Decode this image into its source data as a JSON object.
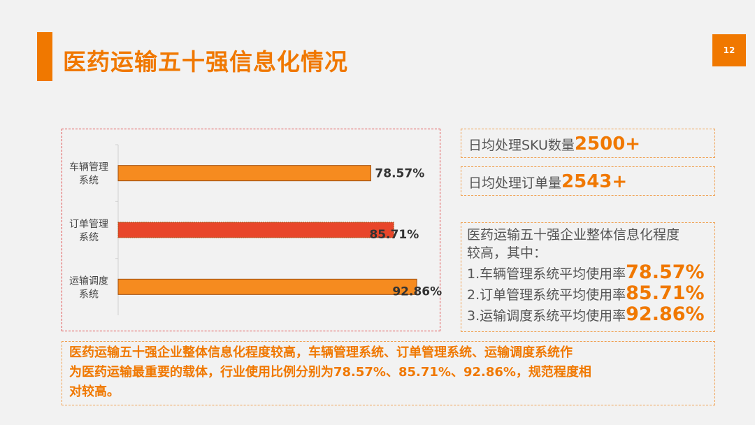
{
  "page": {
    "title": "医药运输五十强信息化情况",
    "page_number": "12"
  },
  "chart_data": {
    "type": "bar",
    "orientation": "horizontal",
    "categories": [
      [
        "车辆管理",
        "系统"
      ],
      [
        "订单管理",
        "系统"
      ],
      [
        "运输调度",
        "系统"
      ]
    ],
    "values": [
      78.57,
      85.71,
      92.86
    ],
    "value_labels": [
      "78.57%",
      "85.71%",
      "92.86%"
    ],
    "bar_colors": [
      "#f68b1f",
      "#e8462a",
      "#f68b1f"
    ],
    "highlighted_index": 1,
    "xlim": [
      0,
      100
    ],
    "grid": false,
    "legend": "none"
  },
  "stats": {
    "sku_label": "日均处理SKU数量",
    "sku_value": "2500+",
    "orders_label": "日均处理订单量",
    "orders_value": "2543+"
  },
  "summary_box": {
    "intro_line1": "医药运输五十强企业整体信息化程度",
    "intro_line2": "较高，其中：",
    "items": [
      {
        "label": "1.车辆管理系统平均使用率",
        "value": "78.57%"
      },
      {
        "label": "2.订单管理系统平均使用率",
        "value": "85.71%"
      },
      {
        "label": "3.运输调度系统平均使用率",
        "value": "92.86%"
      }
    ]
  },
  "conclusion": {
    "line1": "医药运输五十强企业整体信息化程度较高，车辆管理系统、订单管理系统、运输调度系统作",
    "line2": "为医药运输最重要的载体，行业使用比例分别为78.57%、85.71%、92.86%，规范程度相",
    "line3": "对较高。"
  },
  "colors": {
    "accent": "#f07800",
    "bar_primary": "#f68b1f",
    "bar_highlight": "#e8462a",
    "chart_border": "#e05050",
    "box_border": "#f0a050"
  }
}
